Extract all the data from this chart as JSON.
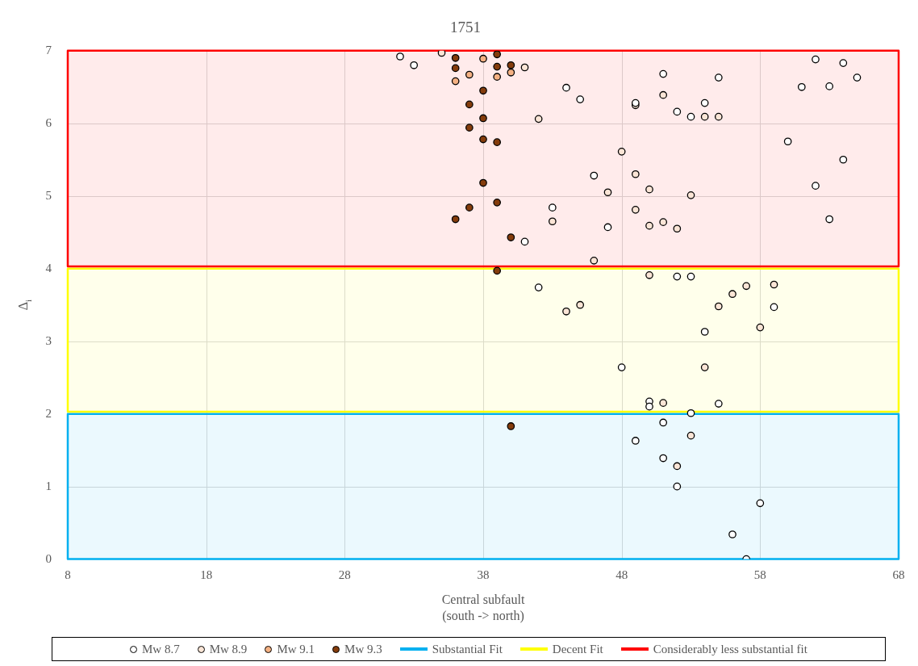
{
  "chart_data": {
    "type": "scatter",
    "title": "1751",
    "xlabel": "Central subfault\n(south -> north)",
    "ylabel": "Δ$_{i}$",
    "xlim": [
      8,
      68
    ],
    "xticks": [
      8,
      18,
      28,
      38,
      48,
      58,
      68
    ],
    "ylim": [
      0,
      7
    ],
    "yticks": [
      0,
      1,
      2,
      3,
      4,
      5,
      6,
      7
    ],
    "grid": true,
    "legend": "bottom",
    "marker": "circle",
    "series": [
      {
        "name": "Mw 8.7",
        "color": "#ffffff",
        "x": [
          32,
          33,
          41,
          43,
          44,
          45,
          49,
          51,
          52,
          53,
          54,
          55,
          62,
          64,
          65,
          61,
          63,
          60,
          64,
          62,
          63,
          46,
          47,
          52,
          53,
          42,
          59,
          54,
          48,
          50,
          50,
          55,
          53,
          51,
          49,
          51,
          52,
          58,
          56,
          57
        ],
        "values": [
          6.92,
          6.8,
          4.37,
          4.84,
          6.49,
          6.33,
          6.28,
          6.68,
          6.16,
          6.09,
          6.28,
          6.63,
          6.88,
          6.83,
          6.63,
          6.5,
          6.51,
          5.75,
          5.5,
          5.14,
          4.68,
          5.28,
          4.57,
          3.89,
          3.89,
          3.74,
          3.47,
          3.13,
          2.64,
          2.17,
          2.1,
          2.14,
          2.01,
          1.88,
          1.63,
          1.39,
          1.0,
          0.77,
          0.34,
          0.0
        ]
      },
      {
        "name": "Mw 8.9",
        "color": "#fbe5d6",
        "x": [
          35,
          41,
          42,
          43,
          49,
          51,
          54,
          55,
          48,
          49,
          50,
          53,
          47,
          49,
          50,
          51,
          52,
          46,
          50,
          57,
          59,
          44,
          45,
          55,
          56,
          58,
          54,
          51,
          53,
          52
        ],
        "values": [
          6.97,
          6.77,
          6.06,
          4.65,
          6.25,
          6.39,
          6.09,
          6.09,
          5.61,
          5.3,
          5.09,
          5.01,
          5.05,
          4.81,
          4.59,
          4.64,
          4.55,
          4.11,
          3.91,
          3.76,
          3.78,
          3.41,
          3.5,
          3.48,
          3.65,
          3.19,
          2.64,
          2.15,
          1.7,
          1.28
        ]
      },
      {
        "name": "Mw 9.1",
        "color": "#f4b183",
        "x": [
          36,
          37,
          38,
          39,
          40
        ],
        "values": [
          6.58,
          6.67,
          6.89,
          6.64,
          6.7
        ]
      },
      {
        "name": "Mw 9.3",
        "color": "#843c0c",
        "x": [
          36,
          36,
          39,
          39,
          40,
          38,
          37,
          38,
          37,
          38,
          39,
          38,
          37,
          39,
          36,
          40,
          39,
          40
        ],
        "values": [
          6.9,
          6.76,
          6.95,
          6.78,
          6.8,
          6.45,
          6.26,
          6.07,
          5.94,
          5.78,
          5.74,
          5.18,
          4.84,
          4.91,
          4.68,
          4.43,
          3.97,
          1.83
        ]
      }
    ],
    "bands": [
      {
        "axis": "y",
        "from": 0,
        "to": 2,
        "label": "Substantial Fit",
        "color": "#00b0f0"
      },
      {
        "axis": "y",
        "from": 2.03,
        "to": 4,
        "label": "Decent Fit",
        "color": "#ffff00"
      },
      {
        "axis": "y",
        "from": 4.03,
        "to": 7,
        "label": "Considerably less substantial fit",
        "color": "#ff0000"
      }
    ]
  }
}
